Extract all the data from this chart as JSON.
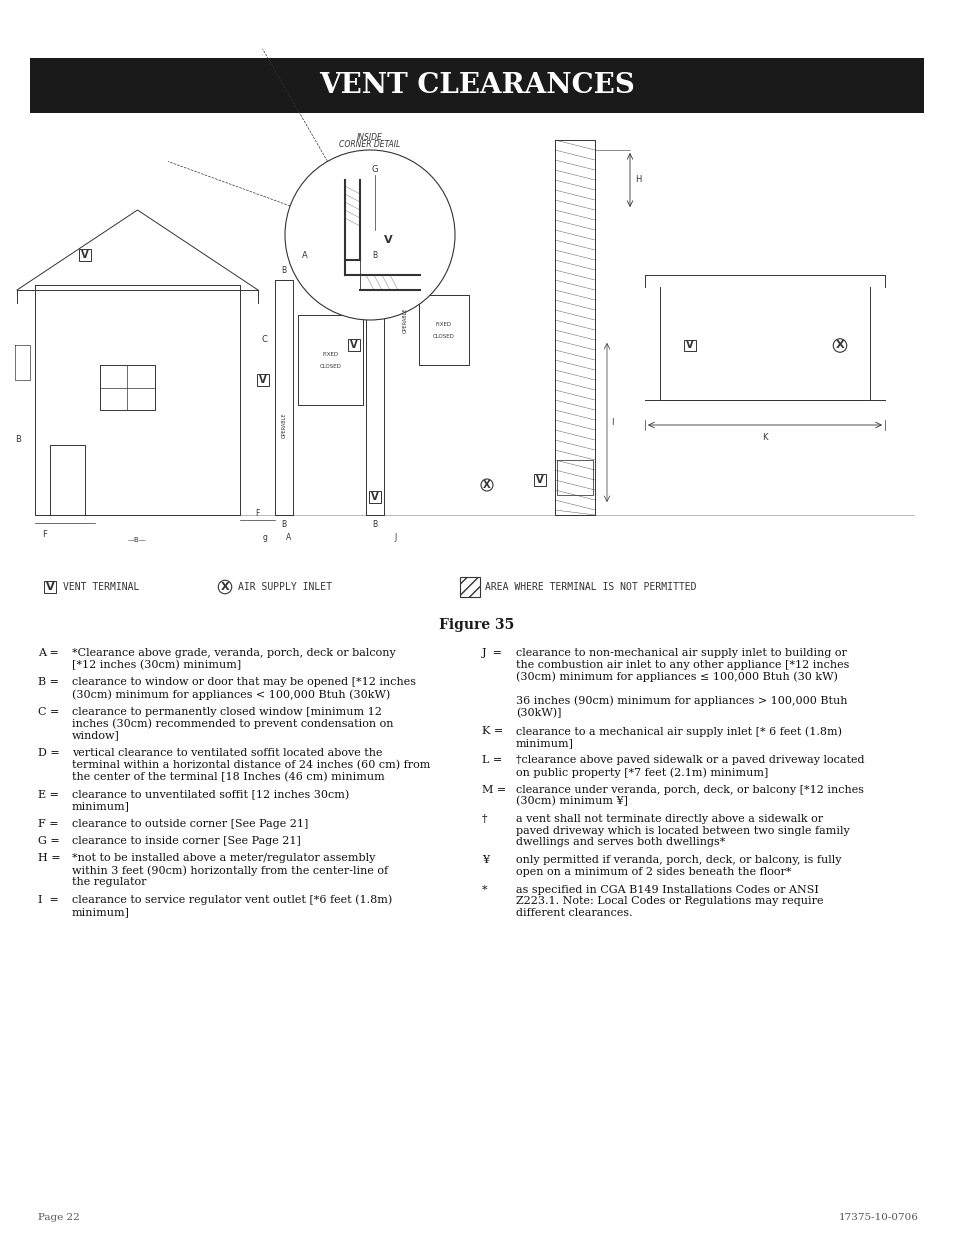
{
  "title": "VENT CLEARANCES",
  "title_bg": "#1a1a1a",
  "title_color": "#ffffff",
  "figure_label": "Figure 35",
  "footer_left": "Page 22",
  "footer_right": "17375-10-0706",
  "page_bg": "#ffffff",
  "text_color": "#1a1a1a",
  "left_items": [
    {
      "key": "A =",
      "text": "*Clearance above grade, veranda, porch, deck or balcony\n[*12 inches (30cm) minimum]",
      "lines": 2
    },
    {
      "key": "B =",
      "text": "clearance to window or door that may be opened [*12 inches\n(30cm) minimum for appliances < 100,000 Btuh (30kW)",
      "lines": 2
    },
    {
      "key": "C =",
      "text": "clearance to permanently closed window [minimum 12\ninches (30cm) recommended to prevent condensation on\nwindow]",
      "lines": 3
    },
    {
      "key": "D =",
      "text": "vertical clearance to ventilated soffit located above the\nterminal within a horizontal distance of 24 inches (60 cm) from\nthe center of the terminal [18 Inches (46 cm) minimum",
      "lines": 3
    },
    {
      "key": "E =",
      "text": "clearance to unventilated soffit [12 inches 30cm)\nminimum]",
      "lines": 2
    },
    {
      "key": "F =",
      "text": "clearance to outside corner [See Page 21]",
      "lines": 1
    },
    {
      "key": "G =",
      "text": "clearance to inside corner [See Page 21]",
      "lines": 1
    },
    {
      "key": "H =",
      "text": "*not to be installed above a meter/regulator assembly\nwithin 3 feet (90cm) horizontally from the center-line of\nthe regulator",
      "lines": 3
    },
    {
      "key": "I  =",
      "text": "clearance to service regulator vent outlet [*6 feet (1.8m)\nminimum]",
      "lines": 2
    }
  ],
  "right_items": [
    {
      "key": "J  =",
      "text": "clearance to non-mechanical air supply inlet to building or\nthe combustion air inlet to any other appliance [*12 inches\n(30cm) minimum for appliances ≤ 100,000 Btuh (30 kW)\n\n36 inches (90cm) minimum for appliances > 100,000 Btuh\n(30kW)]",
      "lines": 6
    },
    {
      "key": "K =",
      "text": "clearance to a mechanical air supply inlet [* 6 feet (1.8m)\nminimum]",
      "lines": 2
    },
    {
      "key": "L =",
      "text": "†clearance above paved sidewalk or a paved driveway located\non public property [*7 feet (2.1m) minimum]",
      "lines": 2
    },
    {
      "key": "M =",
      "text": "clearance under veranda, porch, deck, or balcony [*12 inches\n(30cm) minimum ¥]",
      "lines": 2
    },
    {
      "key": "†",
      "text": "a vent shall not terminate directly above a sidewalk or\npaved driveway which is located between two single family\ndwellings and serves both dwellings*",
      "lines": 3
    },
    {
      "key": "¥",
      "text": "only permitted if veranda, porch, deck, or balcony, is fully\nopen on a minimum of 2 sides beneath the floor*",
      "lines": 2
    },
    {
      "key": "*",
      "text": "as specified in CGA B149 Installations Codes or ANSI\nZ223.1. Note: Local Codes or Regulations may require\ndifferent clearances.",
      "lines": 3
    }
  ]
}
